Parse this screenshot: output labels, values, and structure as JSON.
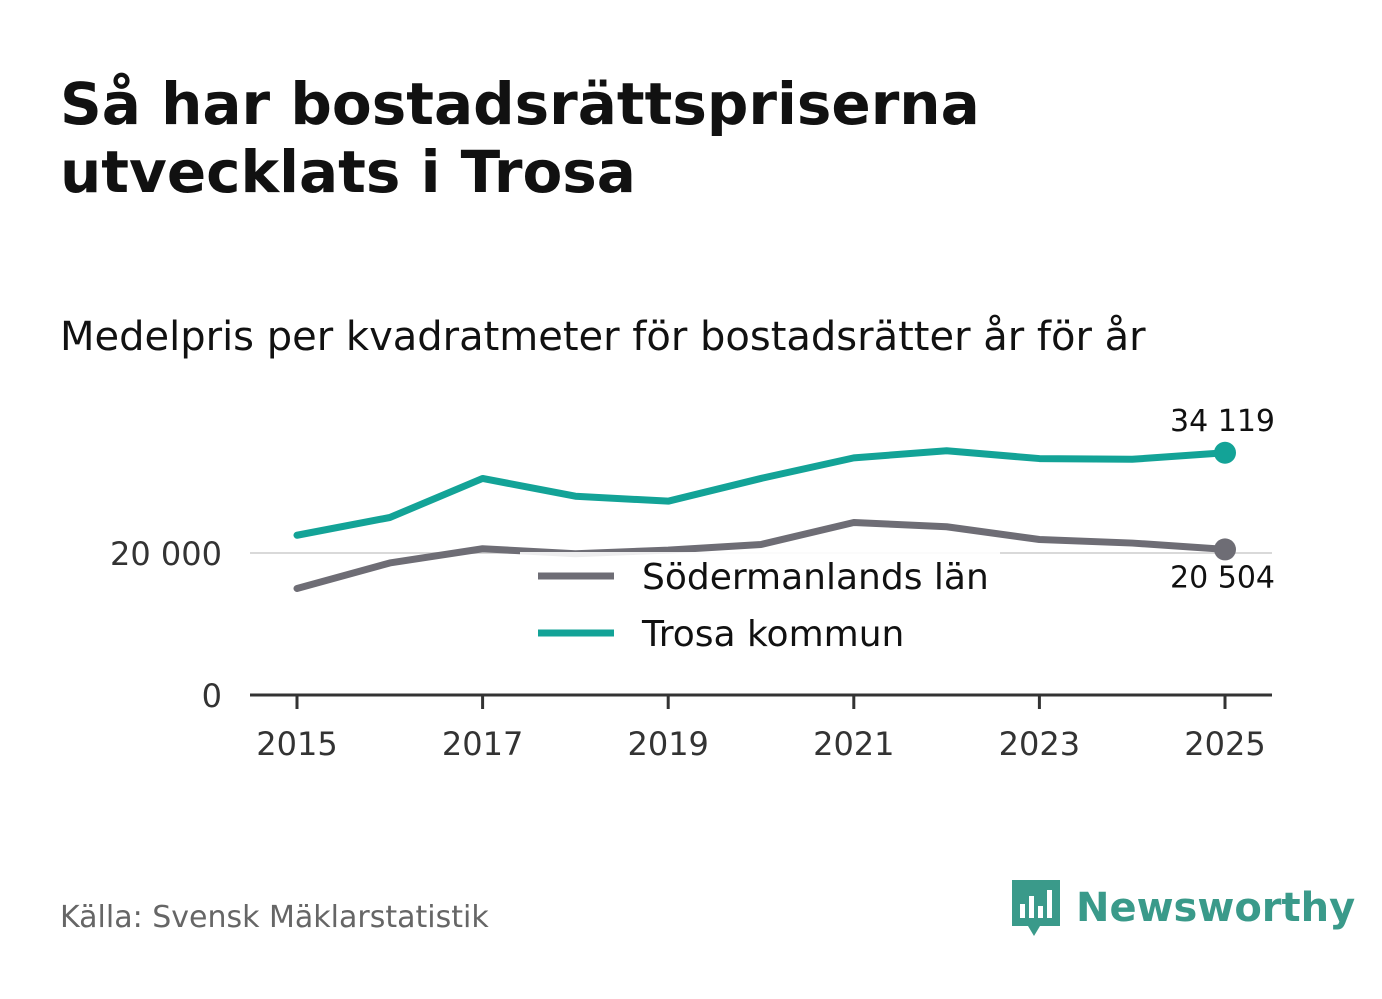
{
  "title": "Så har bostadsrättspriserna utvecklats i Trosa",
  "subtitle": "Medelpris per kvadratmeter för bostadsrätter år för år",
  "source": "Källa: Svensk Mäklarstatistik",
  "brand": {
    "name": "Newsworthy",
    "color": "#3a9a8a",
    "icon": "newsworthy-logo-icon"
  },
  "chart_data": {
    "type": "line",
    "x": [
      2015,
      2016,
      2017,
      2018,
      2019,
      2020,
      2021,
      2022,
      2023,
      2024,
      2025
    ],
    "x_ticks": [
      "2015",
      "2017",
      "2019",
      "2021",
      "2023",
      "2025"
    ],
    "y_ticks": [
      {
        "value": 0,
        "label": "0"
      },
      {
        "value": 20000,
        "label": "20 000"
      }
    ],
    "ylim": [
      0,
      36000
    ],
    "series": [
      {
        "name": "Södermanlands län",
        "color": "#6e6d75",
        "values": [
          15000,
          18600,
          20600,
          19900,
          20400,
          21200,
          24300,
          23700,
          21900,
          21400,
          20504
        ],
        "end_label": "20 504"
      },
      {
        "name": "Trosa kommun",
        "color": "#13a397",
        "values": [
          22500,
          25000,
          30500,
          28000,
          27300,
          30500,
          33400,
          34400,
          33300,
          33200,
          34119
        ],
        "end_label": "34 119"
      }
    ],
    "legend_position": "center"
  }
}
